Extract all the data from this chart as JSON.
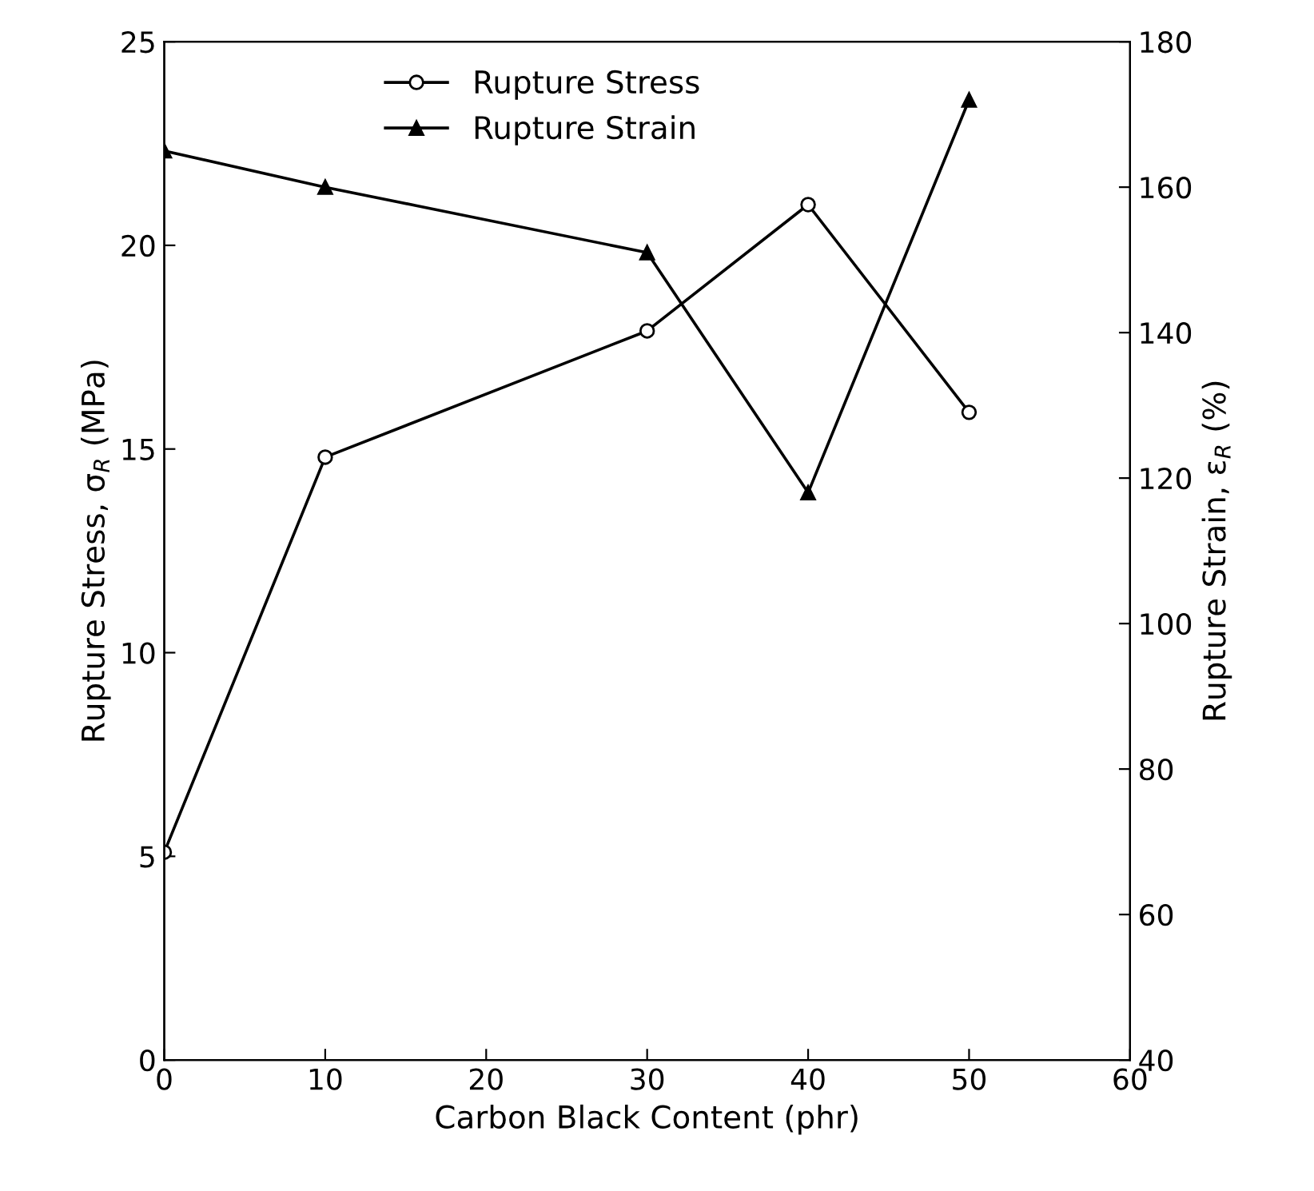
{
  "chart_data": {
    "type": "line",
    "xlabel": "Carbon Black Content (phr)",
    "ylabel": "Rupture Stress, σ$_{R}$ (MPa)",
    "y2label": "Rupture Strain, ε$_{R}$ (%)",
    "x": [
      0,
      10,
      30,
      40,
      50
    ],
    "series": [
      {
        "name": "Rupture Stress",
        "color": "#000000",
        "values": [
          5.1,
          14.8,
          17.9,
          21.0,
          15.9
        ],
        "marker": "circle"
      },
      {
        "name": "Rupture Strain",
        "color": "#000000",
        "values": [
          165,
          160,
          151,
          118,
          172
        ],
        "marker": "triangle",
        "axis": "y2"
      }
    ],
    "xlim": [
      0,
      60
    ],
    "xticks": [
      0,
      10,
      20,
      30,
      40,
      50,
      60
    ],
    "ylim": [
      0,
      25
    ],
    "yticks": [
      0,
      5,
      10,
      15,
      20,
      25
    ],
    "y2lim": [
      40,
      180
    ],
    "y2ticks": [
      40,
      60,
      80,
      100,
      120,
      140,
      160,
      180
    ],
    "grid": false,
    "legend": "top left",
    "line_style": "solid"
  }
}
